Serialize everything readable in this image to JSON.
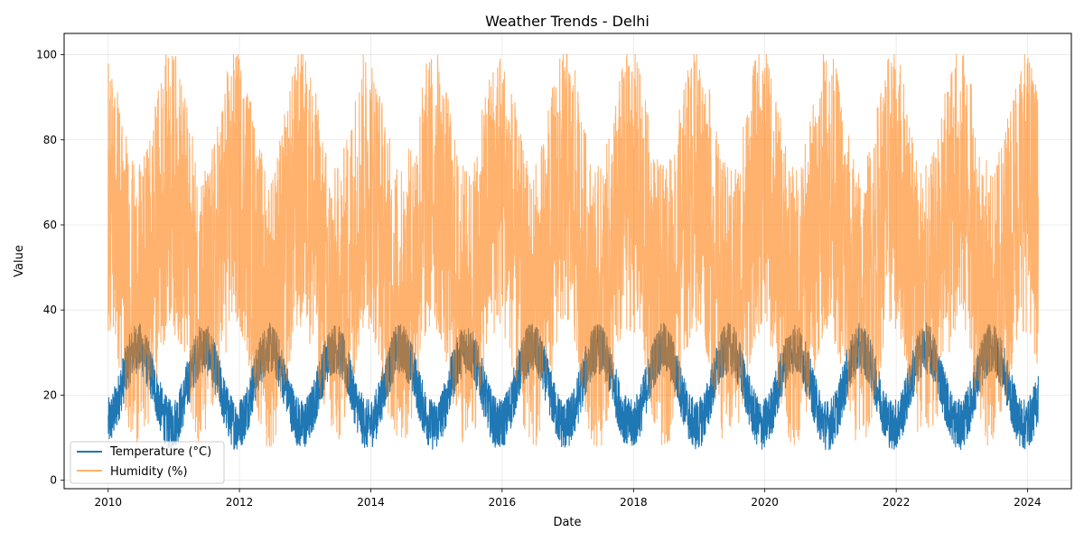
{
  "chart_data": {
    "type": "line",
    "title": "Weather Trends - Delhi",
    "xlabel": "Date",
    "ylabel": "Value",
    "x_range": [
      "2009-05-01",
      "2024-09-01"
    ],
    "x_ticks": [
      {
        "date": "2010-01-01",
        "label": "2010"
      },
      {
        "date": "2012-01-01",
        "label": "2012"
      },
      {
        "date": "2014-01-01",
        "label": "2014"
      },
      {
        "date": "2016-01-01",
        "label": "2016"
      },
      {
        "date": "2018-01-01",
        "label": "2018"
      },
      {
        "date": "2020-01-01",
        "label": "2020"
      },
      {
        "date": "2022-01-01",
        "label": "2022"
      },
      {
        "date": "2024-01-01",
        "label": "2024"
      }
    ],
    "ylim": [
      -2,
      105
    ],
    "y_ticks": [
      0,
      20,
      40,
      60,
      80,
      100
    ],
    "grid": true,
    "legend_position": "lower-left",
    "date_start": "2010-01-01",
    "date_end": "2024-03-01",
    "series": [
      {
        "name": "Temperature (°C)",
        "color": "#1f77b4",
        "opacity": 1.0,
        "seasonal_mean": {
          "min": 13,
          "max": 31,
          "peak_month": 5.5
        },
        "daily_band": [
          -6,
          6
        ],
        "range": [
          2,
          45
        ]
      },
      {
        "name": "Humidity (%)",
        "color": "#ff7f0e",
        "opacity": 0.6,
        "seasonal_mean": {
          "min": 52,
          "max": 80,
          "peak_month": 11.5
        },
        "daily_band": [
          -45,
          22
        ],
        "range": [
          8,
          100
        ]
      }
    ]
  }
}
